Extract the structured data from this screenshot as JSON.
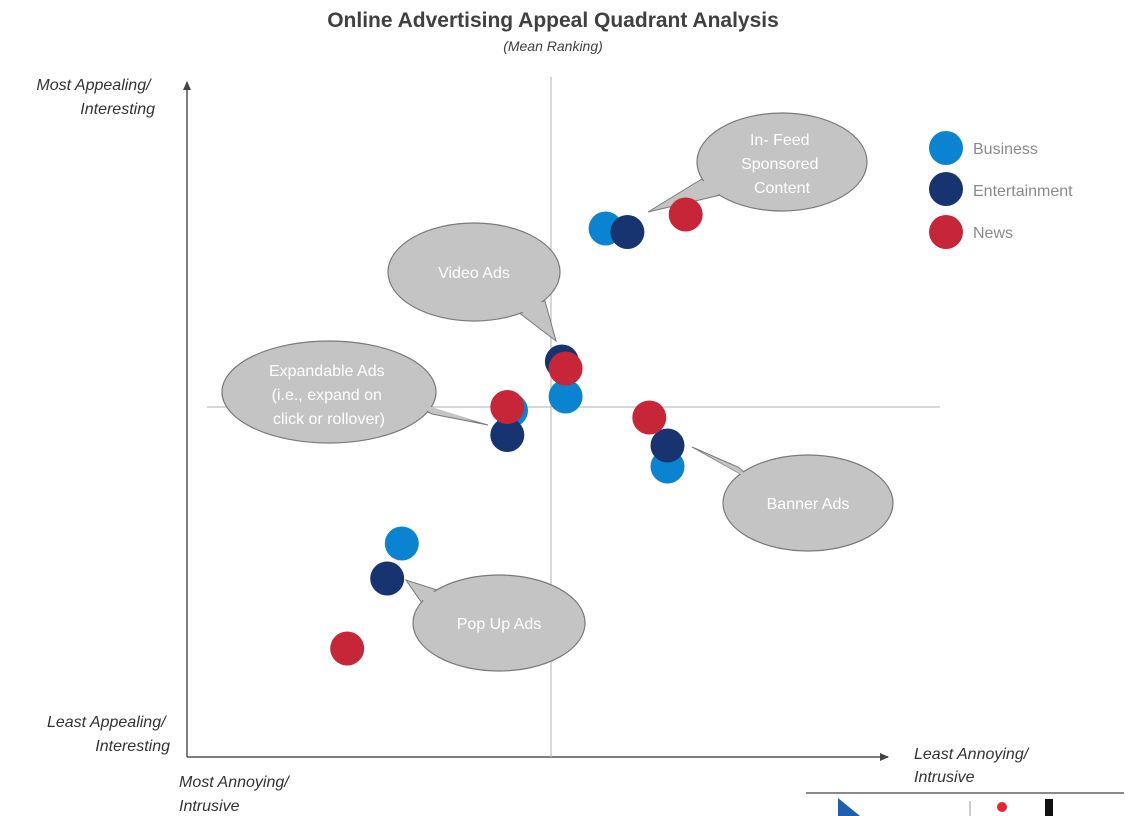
{
  "chart_data": {
    "type": "scatter",
    "title": "Online Advertising Appeal Quadrant Analysis",
    "subtitle": "(Mean Ranking)",
    "y_axis": {
      "top_label": [
        "Most Appealing/",
        "Interesting"
      ],
      "bottom_label": [
        "Least Appealing/",
        "Interesting"
      ]
    },
    "x_axis": {
      "left_label": [
        "Most Annoying/",
        "Intrusive"
      ],
      "right_label": [
        "Least Annoying/",
        "Intrusive"
      ]
    },
    "xlim": [
      -1,
      1
    ],
    "ylim": [
      -1,
      1
    ],
    "series": [
      {
        "name": "Business",
        "color": "#0a84d0",
        "points": [
          {
            "ad": "In- Feed Sponsored Content",
            "x": 0.15,
            "y": 0.51
          },
          {
            "ad": "Video Ads",
            "x": 0.04,
            "y": 0.03
          },
          {
            "ad": "Expandable Ads",
            "x": -0.11,
            "y": -0.01
          },
          {
            "ad": "Banner Ads",
            "x": 0.32,
            "y": -0.17
          },
          {
            "ad": "Pop Up Ads",
            "x": -0.41,
            "y": -0.39
          }
        ]
      },
      {
        "name": "Entertainment",
        "color": "#173470",
        "points": [
          {
            "ad": "In- Feed Sponsored Content",
            "x": 0.21,
            "y": 0.5
          },
          {
            "ad": "Video Ads",
            "x": 0.03,
            "y": 0.13
          },
          {
            "ad": "Expandable Ads",
            "x": -0.12,
            "y": -0.08
          },
          {
            "ad": "Banner Ads",
            "x": 0.32,
            "y": -0.11
          },
          {
            "ad": "Pop Up Ads",
            "x": -0.45,
            "y": -0.49
          }
        ]
      },
      {
        "name": "News",
        "color": "#c72638",
        "points": [
          {
            "ad": "In- Feed Sponsored Content",
            "x": 0.37,
            "y": 0.55
          },
          {
            "ad": "Video Ads",
            "x": 0.04,
            "y": 0.11
          },
          {
            "ad": "Expandable Ads",
            "x": -0.12,
            "y": 0.0
          },
          {
            "ad": "Banner Ads",
            "x": 0.27,
            "y": -0.03
          },
          {
            "ad": "Pop Up Ads",
            "x": -0.56,
            "y": -0.69
          }
        ]
      }
    ],
    "callouts": [
      {
        "lines": [
          "In- Feed",
          "Sponsored",
          "Content"
        ]
      },
      {
        "lines": [
          "Video Ads"
        ]
      },
      {
        "lines": [
          "Expandable Ads",
          "(i.e., expand on",
          "click or rollover)"
        ]
      },
      {
        "lines": [
          "Banner Ads"
        ]
      },
      {
        "lines": [
          "Pop Up Ads"
        ]
      }
    ],
    "legend": [
      "Business",
      "Entertainment",
      "News"
    ],
    "legend_position": "top-right"
  }
}
